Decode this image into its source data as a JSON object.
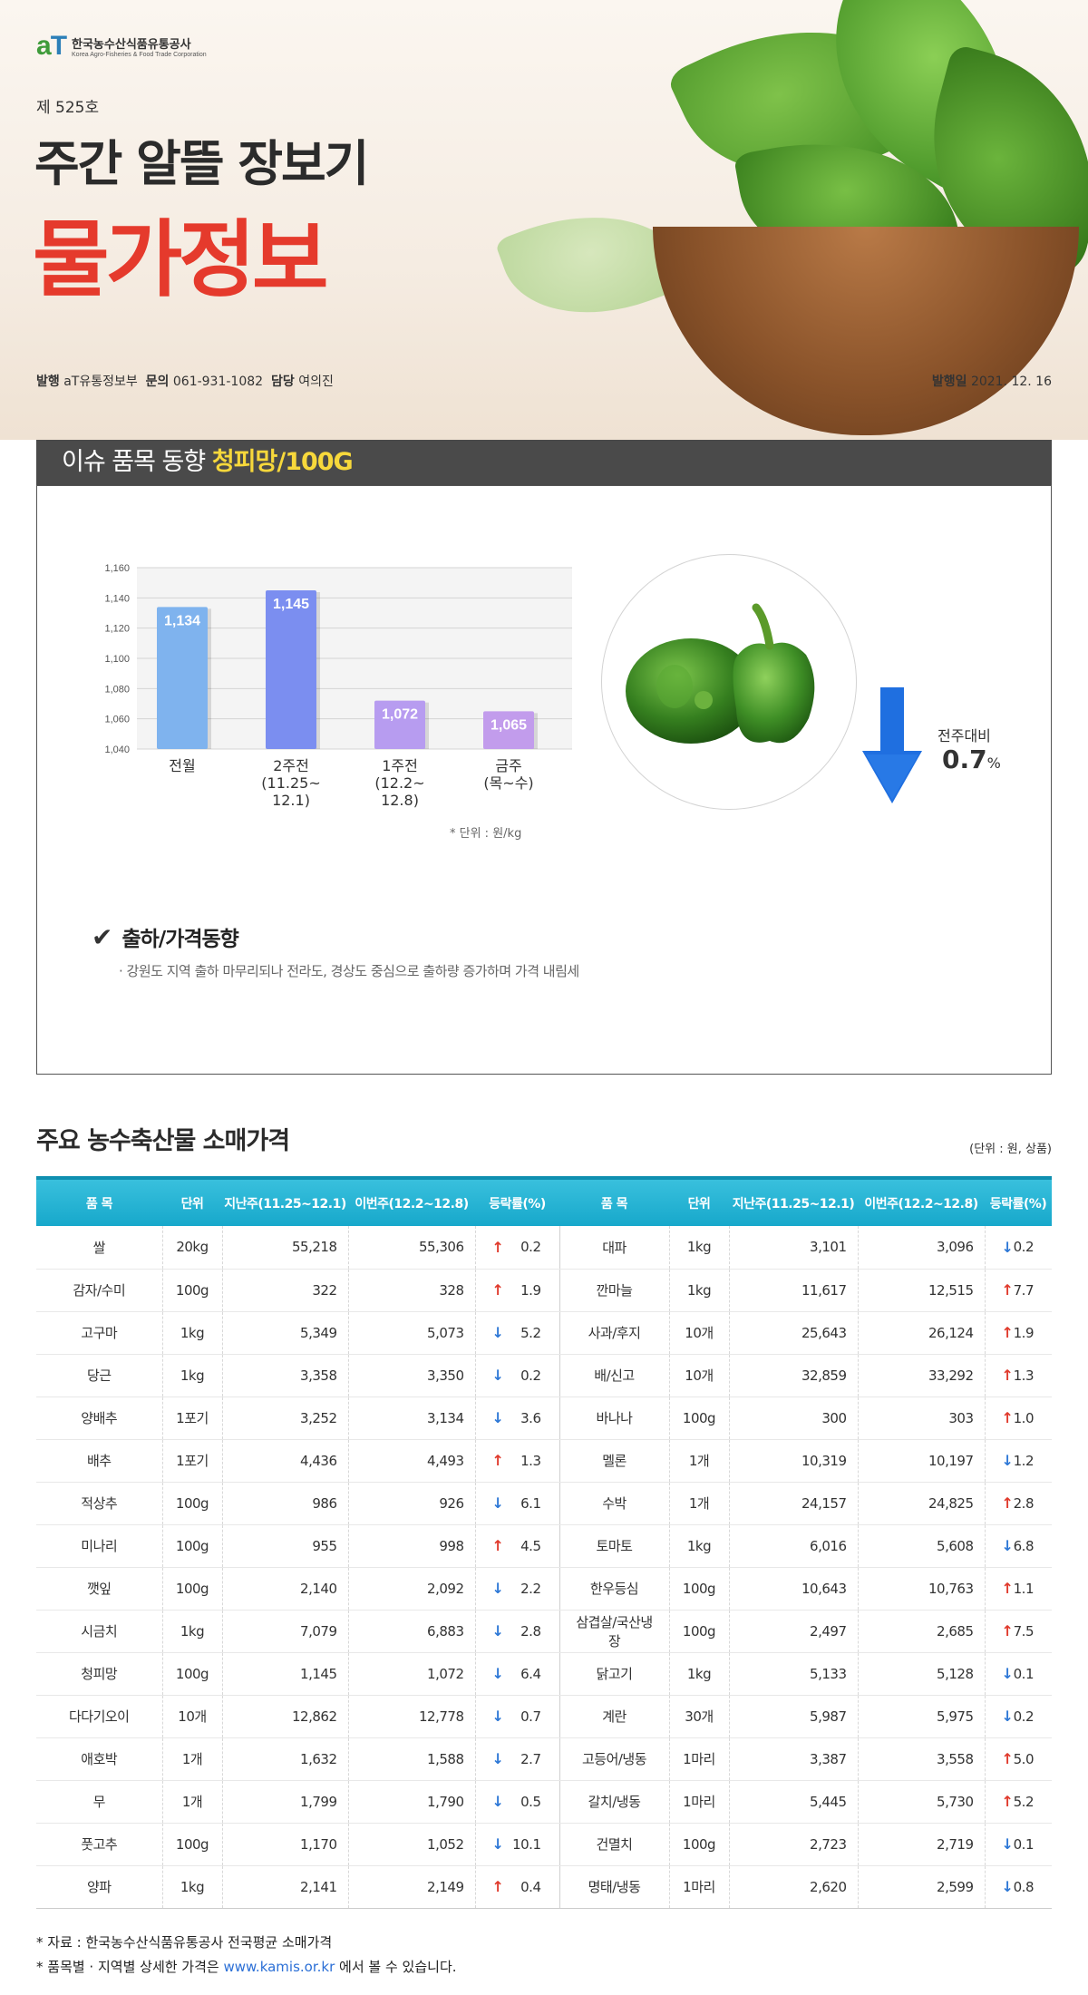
{
  "header": {
    "logo_mark": "aT",
    "logo_kr": "한국농수산식품유통공사",
    "logo_en": "Korea Agro-Fisheries & Food Trade Corporation",
    "issue_no": "제 525호",
    "title_line1": "주간 알뜰 장보기",
    "title_line2": "물가정보",
    "publisher_label": "발행",
    "publisher": "aT유통정보부",
    "contact_label": "문의",
    "contact": "061-931-1082",
    "manager_label": "담당",
    "manager": "여의진",
    "date_label": "발행일",
    "date": "2021. 12. 16"
  },
  "issue": {
    "heading_prefix": "이슈 품목 동향",
    "heading_item": "청피망/100G",
    "unit_note": "* 단위 : 원/kg",
    "change_label": "전주대비",
    "change_value": "0.7",
    "change_unit": "%",
    "trend_title": "출하/가격동향",
    "trend_desc": "· 강원도 지역 출하 마무리되나 전라도, 경상도 중심으로 출하량 증가하며 가격 내림세"
  },
  "chart_data": {
    "type": "bar",
    "categories": [
      "전월",
      "2주전\n(11.25~\n12.1)",
      "1주전\n(12.2~\n12.8)",
      "금주\n(목~수)"
    ],
    "values": [
      1134,
      1145,
      1072,
      1065
    ],
    "value_labels": [
      "1,134",
      "1,145",
      "1,072",
      "1,065"
    ],
    "ylim": [
      1040,
      1160
    ],
    "yticks": [
      "1,040",
      "1,060",
      "1,080",
      "1,100",
      "1,120",
      "1,140",
      "1,160"
    ],
    "grid": true,
    "colors": [
      "#7fb3ee",
      "#7b8ef0",
      "#b79cf0",
      "#c29cec"
    ],
    "title": "",
    "xlabel": "",
    "ylabel": ""
  },
  "prices": {
    "title": "주요 농수축산물 소매가격",
    "unit": "(단위 : 원, 상품)",
    "headers": [
      "품 목",
      "단위",
      "지난주(11.25~12.1)",
      "이번주(12.2~12.8)",
      "등락률(%)",
      "품 목",
      "단위",
      "지난주(11.25~12.1)",
      "이번주(12.2~12.8)",
      "등락률(%)"
    ],
    "rows": [
      [
        {
          "name": "쌀",
          "unit": "20kg",
          "prev": "55,218",
          "curr": "55,306",
          "dir": "up",
          "rate": "0.2"
        },
        {
          "name": "대파",
          "unit": "1kg",
          "prev": "3,101",
          "curr": "3,096",
          "dir": "down",
          "rate": "0.2"
        }
      ],
      [
        {
          "name": "감자/수미",
          "unit": "100g",
          "prev": "322",
          "curr": "328",
          "dir": "up",
          "rate": "1.9"
        },
        {
          "name": "깐마늘",
          "unit": "1kg",
          "prev": "11,617",
          "curr": "12,515",
          "dir": "up",
          "rate": "7.7"
        }
      ],
      [
        {
          "name": "고구마",
          "unit": "1kg",
          "prev": "5,349",
          "curr": "5,073",
          "dir": "down",
          "rate": "5.2"
        },
        {
          "name": "사과/후지",
          "unit": "10개",
          "prev": "25,643",
          "curr": "26,124",
          "dir": "up",
          "rate": "1.9"
        }
      ],
      [
        {
          "name": "당근",
          "unit": "1kg",
          "prev": "3,358",
          "curr": "3,350",
          "dir": "down",
          "rate": "0.2"
        },
        {
          "name": "배/신고",
          "unit": "10개",
          "prev": "32,859",
          "curr": "33,292",
          "dir": "up",
          "rate": "1.3"
        }
      ],
      [
        {
          "name": "양배추",
          "unit": "1포기",
          "prev": "3,252",
          "curr": "3,134",
          "dir": "down",
          "rate": "3.6"
        },
        {
          "name": "바나나",
          "unit": "100g",
          "prev": "300",
          "curr": "303",
          "dir": "up",
          "rate": "1.0"
        }
      ],
      [
        {
          "name": "배추",
          "unit": "1포기",
          "prev": "4,436",
          "curr": "4,493",
          "dir": "up",
          "rate": "1.3"
        },
        {
          "name": "멜론",
          "unit": "1개",
          "prev": "10,319",
          "curr": "10,197",
          "dir": "down",
          "rate": "1.2"
        }
      ],
      [
        {
          "name": "적상추",
          "unit": "100g",
          "prev": "986",
          "curr": "926",
          "dir": "down",
          "rate": "6.1"
        },
        {
          "name": "수박",
          "unit": "1개",
          "prev": "24,157",
          "curr": "24,825",
          "dir": "up",
          "rate": "2.8"
        }
      ],
      [
        {
          "name": "미나리",
          "unit": "100g",
          "prev": "955",
          "curr": "998",
          "dir": "up",
          "rate": "4.5"
        },
        {
          "name": "토마토",
          "unit": "1kg",
          "prev": "6,016",
          "curr": "5,608",
          "dir": "down",
          "rate": "6.8"
        }
      ],
      [
        {
          "name": "깻잎",
          "unit": "100g",
          "prev": "2,140",
          "curr": "2,092",
          "dir": "down",
          "rate": "2.2"
        },
        {
          "name": "한우등심",
          "unit": "100g",
          "prev": "10,643",
          "curr": "10,763",
          "dir": "up",
          "rate": "1.1"
        }
      ],
      [
        {
          "name": "시금치",
          "unit": "1kg",
          "prev": "7,079",
          "curr": "6,883",
          "dir": "down",
          "rate": "2.8"
        },
        {
          "name": "삼겹살/국산냉장",
          "unit": "100g",
          "prev": "2,497",
          "curr": "2,685",
          "dir": "up",
          "rate": "7.5"
        }
      ],
      [
        {
          "name": "청피망",
          "unit": "100g",
          "prev": "1,145",
          "curr": "1,072",
          "dir": "down",
          "rate": "6.4"
        },
        {
          "name": "닭고기",
          "unit": "1kg",
          "prev": "5,133",
          "curr": "5,128",
          "dir": "down",
          "rate": "0.1"
        }
      ],
      [
        {
          "name": "다다기오이",
          "unit": "10개",
          "prev": "12,862",
          "curr": "12,778",
          "dir": "down",
          "rate": "0.7"
        },
        {
          "name": "계란",
          "unit": "30개",
          "prev": "5,987",
          "curr": "5,975",
          "dir": "down",
          "rate": "0.2"
        }
      ],
      [
        {
          "name": "애호박",
          "unit": "1개",
          "prev": "1,632",
          "curr": "1,588",
          "dir": "down",
          "rate": "2.7"
        },
        {
          "name": "고등어/냉동",
          "unit": "1마리",
          "prev": "3,387",
          "curr": "3,558",
          "dir": "up",
          "rate": "5.0"
        }
      ],
      [
        {
          "name": "무",
          "unit": "1개",
          "prev": "1,799",
          "curr": "1,790",
          "dir": "down",
          "rate": "0.5"
        },
        {
          "name": "갈치/냉동",
          "unit": "1마리",
          "prev": "5,445",
          "curr": "5,730",
          "dir": "up",
          "rate": "5.2"
        }
      ],
      [
        {
          "name": "풋고추",
          "unit": "100g",
          "prev": "1,170",
          "curr": "1,052",
          "dir": "down",
          "rate": "10.1"
        },
        {
          "name": "건멸치",
          "unit": "100g",
          "prev": "2,723",
          "curr": "2,719",
          "dir": "down",
          "rate": "0.1"
        }
      ],
      [
        {
          "name": "양파",
          "unit": "1kg",
          "prev": "2,141",
          "curr": "2,149",
          "dir": "up",
          "rate": "0.4"
        },
        {
          "name": "명태/냉동",
          "unit": "1마리",
          "prev": "2,620",
          "curr": "2,599",
          "dir": "down",
          "rate": "0.8"
        }
      ]
    ]
  },
  "footnotes": {
    "source": "* 자료 : 한국농수산식품유통공사 전국평균 소매가격",
    "detail_prefix": "* 품목별 · 지역별 상세한 가격은",
    "detail_link": "www.kamis.or.kr",
    "detail_suffix": "에서 볼 수 있습니다."
  },
  "colors": {
    "title_red": "#e53a2c",
    "issue_highlight": "#f7d83b",
    "table_header": "#17a8cb",
    "up": "#e03a2c",
    "down": "#2e78d6"
  },
  "icons": {
    "check": "check-icon",
    "up_arrow": "arrow-up-icon",
    "down_arrow": "arrow-down-icon"
  }
}
